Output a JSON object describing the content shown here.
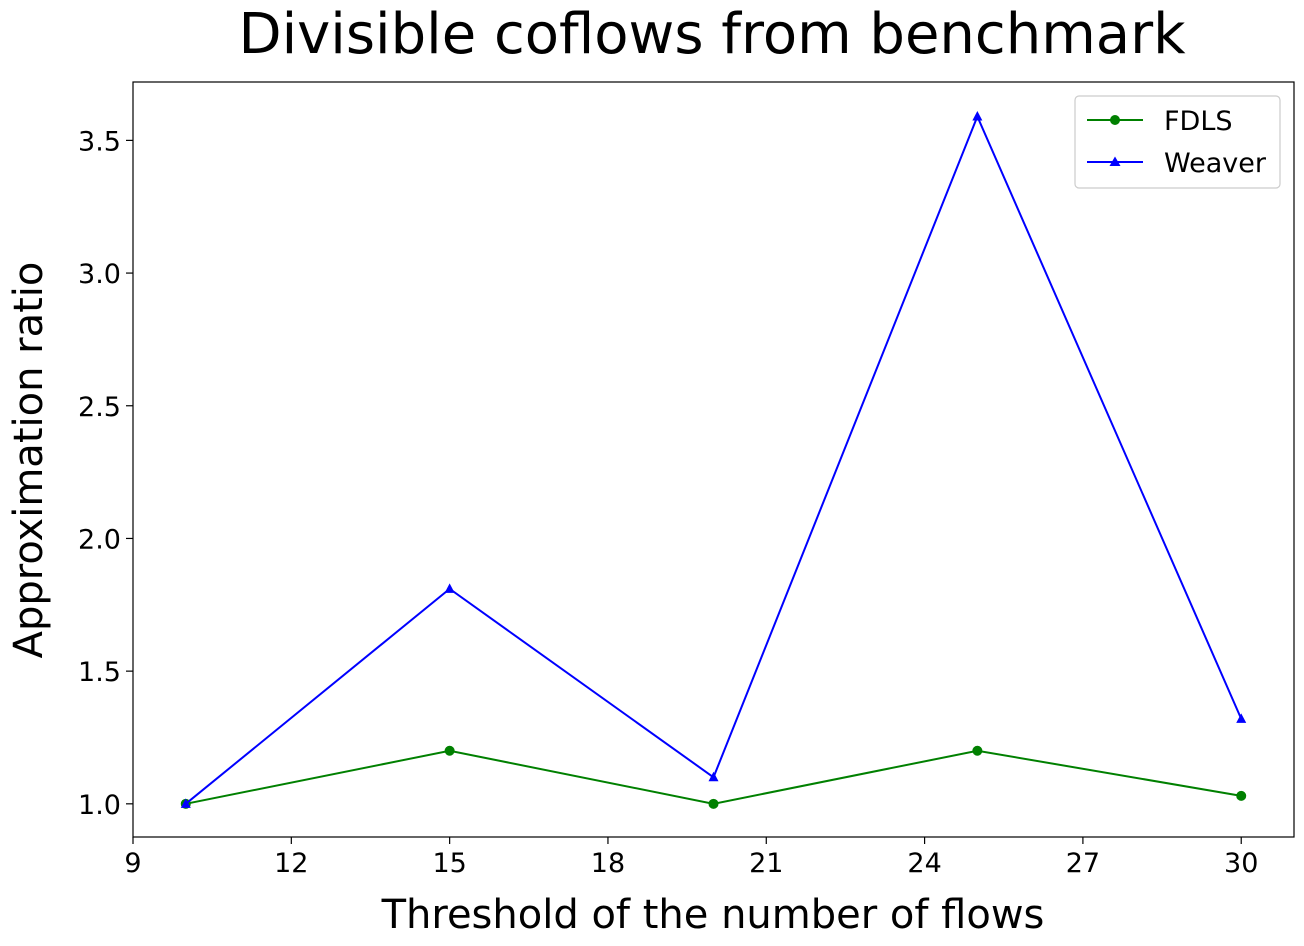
{
  "chart_data": {
    "type": "line",
    "title": "Divisible coflows from benchmark",
    "xlabel": "Threshold of the number of flows",
    "ylabel": "Approximation ratio",
    "xlim": [
      9,
      31
    ],
    "ylim": [
      0.875,
      3.72
    ],
    "xticks": [
      9,
      12,
      15,
      18,
      21,
      24,
      27,
      30
    ],
    "yticks": [
      1.0,
      1.5,
      2.0,
      2.5,
      3.0,
      3.5
    ],
    "ytick_labels": [
      "1.0",
      "1.5",
      "2.0",
      "2.5",
      "3.0",
      "3.5"
    ],
    "x": [
      10,
      15,
      20,
      25,
      30
    ],
    "series": [
      {
        "name": "FDLS",
        "values": [
          1.0,
          1.2,
          1.0,
          1.2,
          1.03
        ],
        "color": "#008000",
        "marker": "circle"
      },
      {
        "name": "Weaver",
        "values": [
          1.0,
          1.81,
          1.1,
          3.59,
          1.32
        ],
        "color": "#0000ff",
        "marker": "triangle"
      }
    ],
    "legend_position": "top-right",
    "grid": false
  }
}
